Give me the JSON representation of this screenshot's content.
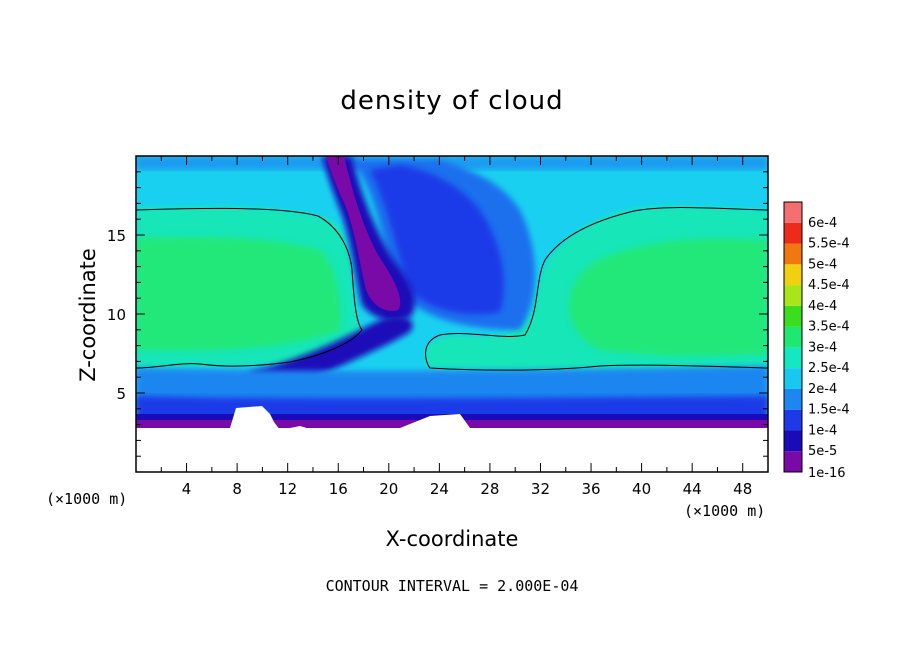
{
  "chart_data": {
    "type": "heatmap",
    "title": "density of cloud",
    "xlabel": "X-coordinate",
    "ylabel": "Z-coordinate",
    "x_unit_label": "(×1000 m)",
    "footer": "CONTOUR INTERVAL = 2.000E-04",
    "xlim": [
      0,
      50
    ],
    "ylim": [
      0,
      20
    ],
    "x_ticks": [
      4,
      8,
      12,
      16,
      20,
      24,
      28,
      32,
      36,
      40,
      44,
      48
    ],
    "x_tick_labels": [
      "4",
      "8",
      "12",
      "16",
      "20",
      "24",
      "28",
      "32",
      "36",
      "40",
      "44",
      "48"
    ],
    "y_ticks": [
      5,
      10,
      15
    ],
    "y_tick_labels": [
      "5",
      "10",
      "15"
    ],
    "colorbar": {
      "levels": [
        1e-16,
        5e-05,
        0.0001,
        0.00015,
        0.0002,
        0.00025,
        0.0003,
        0.00035,
        0.0004,
        0.00045,
        0.0005,
        0.00055,
        0.0006
      ],
      "labels": [
        "1e-16",
        "5e-5",
        "1e-4",
        "1.5e-4",
        "2e-4",
        "2.5e-4",
        "3e-4",
        "3.5e-4",
        "4e-4",
        "4.5e-4",
        "5e-4",
        "5.5e-4",
        "6e-4"
      ],
      "colors": [
        "#7a0aa8",
        "#1a0ab8",
        "#1e3ae8",
        "#1d86f0",
        "#18c8f0",
        "#14e8c0",
        "#1ee870",
        "#3cdc1e",
        "#a8e61a",
        "#f0d010",
        "#f07810",
        "#f02a1a",
        "#f47070"
      ]
    },
    "approx_fields": {
      "contour_level": 0.0002,
      "cloud_base_z": 3.2,
      "cloud_top_z": 20,
      "left_cell": {
        "x": [
          0,
          14
        ],
        "z": [
          6.5,
          16.5
        ],
        "peak": 0.00026
      },
      "right_cell": {
        "x": [
          31,
          50
        ],
        "z": [
          6.5,
          16.8
        ],
        "peak": 0.00026
      },
      "low_density_plume": {
        "x": [
          13,
          24
        ],
        "z": [
          3.5,
          20
        ]
      }
    }
  }
}
